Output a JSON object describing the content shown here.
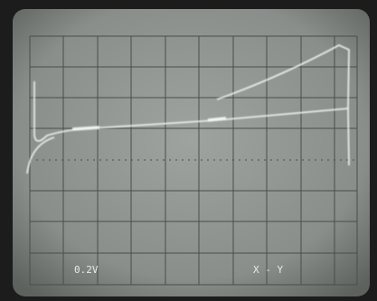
{
  "screen": {
    "scale_label": "0.2V",
    "mode_label": "X - Y"
  }
}
